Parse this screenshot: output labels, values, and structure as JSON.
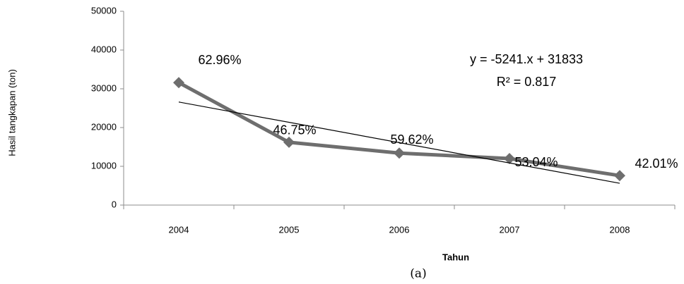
{
  "chart_data": {
    "type": "line",
    "caption": "(a)",
    "x_label": "Tahun",
    "y_label": "Hasil tangkapan (ton)",
    "categories": [
      "2004",
      "2005",
      "2006",
      "2007",
      "2008"
    ],
    "series": [
      {
        "name": "Hasil tangkapan",
        "color": "#6e6e6e",
        "values": [
          31600,
          16200,
          13400,
          12000,
          7600
        ]
      }
    ],
    "point_labels": [
      "62.96%",
      "46.75%",
      "59.62%",
      "53.04%",
      "42.01%"
    ],
    "trendline": {
      "slope": -5241,
      "intercept": 31833,
      "equation": "y = -5241.x + 31833",
      "r2_label": "R² = 0.817",
      "color": "#000000"
    },
    "ylim": [
      0,
      50000
    ],
    "yticks": [
      0,
      10000,
      20000,
      30000,
      40000,
      50000
    ],
    "grid": false,
    "legend": false
  }
}
